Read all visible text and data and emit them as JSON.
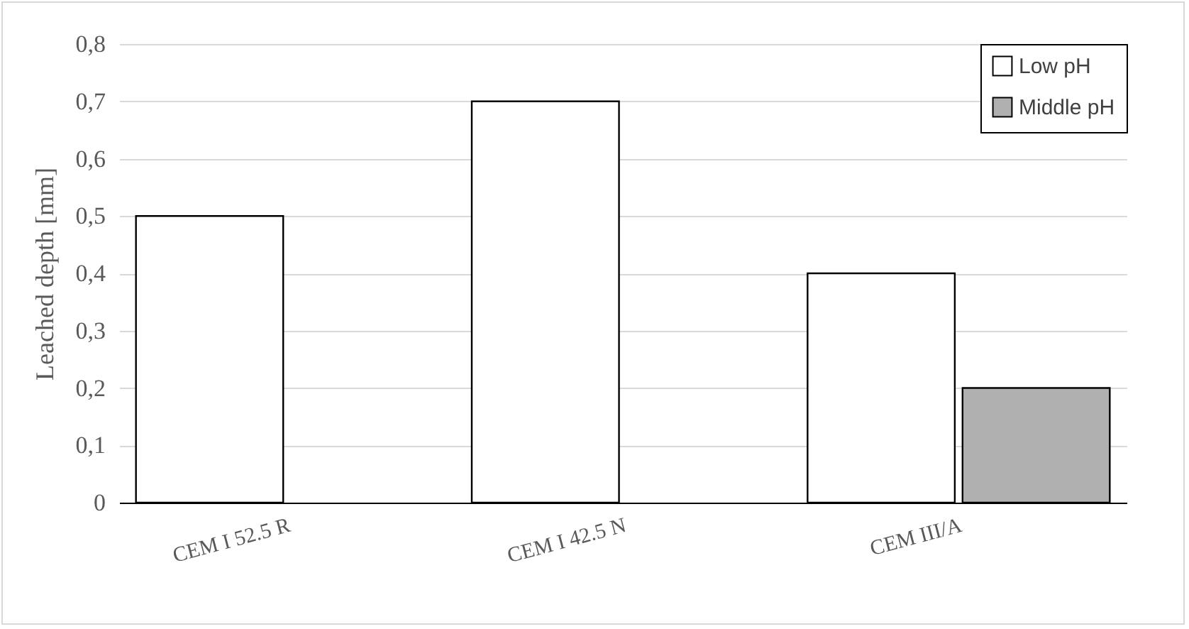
{
  "chart_data": {
    "type": "bar",
    "ylabel": "Leached depth [mm]",
    "categories": [
      "CEM I 52.5 R",
      "CEM I 42.5 N",
      "CEM III/A"
    ],
    "series": [
      {
        "name": "Low pH",
        "color": "#ffffff",
        "values": [
          0.5,
          0.7,
          0.4
        ]
      },
      {
        "name": "Middle pH",
        "color": "#b0b0b0",
        "values": [
          null,
          null,
          0.2
        ]
      }
    ],
    "ylim": [
      0,
      0.8
    ],
    "yticks": [
      0,
      {
        "value": 0.1,
        "label": "0,1"
      },
      {
        "value": 0.2,
        "label": "0,2"
      },
      {
        "value": 0.3,
        "label": "0,3"
      },
      {
        "value": 0.4,
        "label": "0,4"
      },
      {
        "value": 0.5,
        "label": "0,5"
      },
      {
        "value": 0.6,
        "label": "0,6"
      },
      {
        "value": 0.7,
        "label": "0,7"
      },
      {
        "value": 0.8,
        "label": "0,8"
      }
    ],
    "grid": "y",
    "legend": "top right"
  }
}
